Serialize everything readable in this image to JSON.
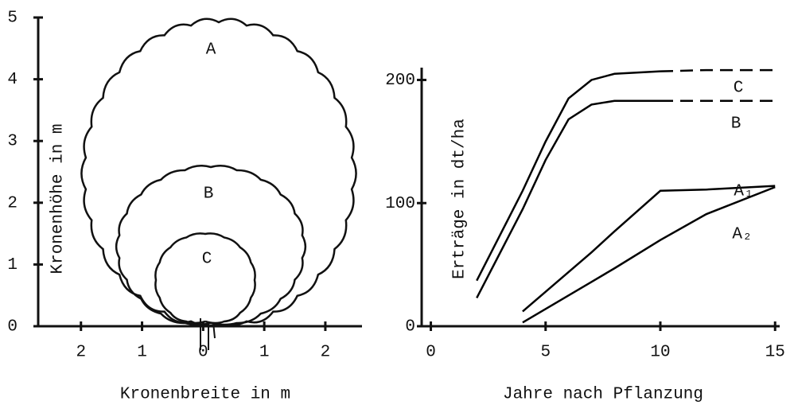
{
  "chart_data": [
    {
      "type": "diagram",
      "xlabel": "Kronenbreite in m",
      "ylabel": "Kronenhöhe in m",
      "xlim": [
        -2.7,
        2.6
      ],
      "ylim": [
        0,
        5
      ],
      "xticks": [
        {
          "value": -2,
          "label": "2"
        },
        {
          "value": -1,
          "label": "1"
        },
        0,
        1,
        2
      ],
      "yticks": [
        0,
        1,
        2,
        3,
        4,
        5
      ],
      "annotations": [
        "A",
        "B",
        "C"
      ]
    },
    {
      "type": "line",
      "xlabel": "Jahre nach Pflanzung",
      "ylabel": "Erträge in dt/ha",
      "xlim": [
        -0.4,
        15.2
      ],
      "ylim": [
        0,
        210
      ],
      "xticks": [
        0,
        5,
        10,
        15
      ],
      "yticks": [
        0,
        100,
        200
      ],
      "x": [
        2,
        4,
        5,
        6,
        7,
        8,
        10,
        12,
        15
      ],
      "series": [
        {
          "name": "C",
          "color": "#000000",
          "values": [
            37,
            110,
            150,
            185,
            200,
            205,
            207,
            208,
            208
          ],
          "dashed_from_x": 10
        },
        {
          "name": "B",
          "color": "#000000",
          "values": [
            23,
            95,
            135,
            168,
            180,
            183,
            183,
            183,
            183
          ],
          "dashed_from_x": 10
        },
        {
          "name": "A₁",
          "color": "#000000",
          "values": [
            null,
            12,
            28,
            44,
            60,
            77,
            110,
            111,
            114
          ]
        },
        {
          "name": "A₂",
          "color": "#000000",
          "values": [
            null,
            3,
            14,
            25,
            36,
            47,
            70,
            91,
            113
          ]
        }
      ]
    }
  ]
}
